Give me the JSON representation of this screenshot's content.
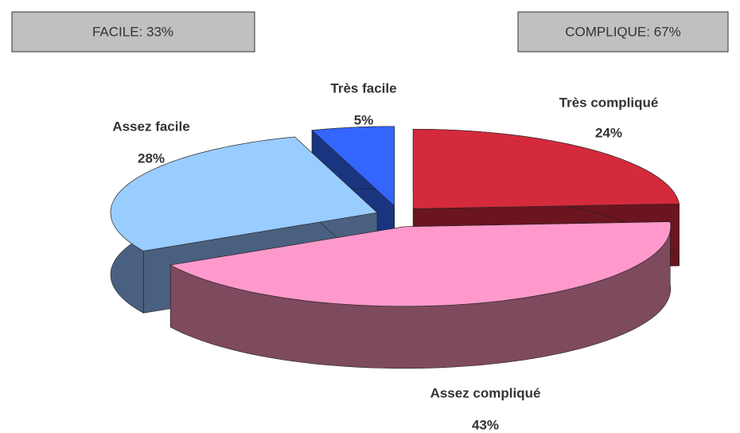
{
  "chart_data": {
    "type": "pie3d",
    "categories": [
      "Très compliqué",
      "Assez compliqué",
      "Assez facile",
      "Très facile"
    ],
    "values": [
      24,
      43,
      28,
      5
    ],
    "value_labels": [
      "24%",
      "43%",
      "28%",
      "5%"
    ],
    "colors": [
      "#d42a3c",
      "#ff99cc",
      "#99ccff",
      "#3366ff"
    ],
    "side_colors": [
      "#6b1520",
      "#7e4a5e",
      "#4a6080",
      "#1a3580"
    ],
    "annotations": [
      "FACILE: 33%",
      "COMPLIQUE: 67%"
    ]
  }
}
